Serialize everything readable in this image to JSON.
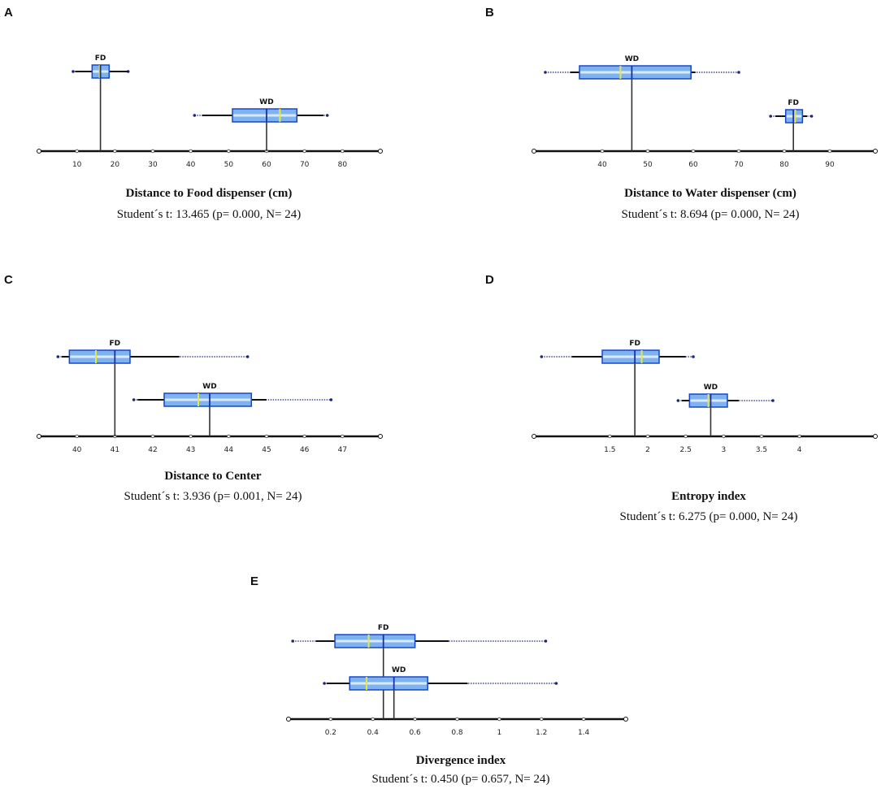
{
  "figure": {
    "colors": {
      "box_fill": "#7fb3f0",
      "box_stroke": "#1846c8",
      "box_inner": "#d9eaff",
      "median": "#1a2fa8",
      "mean": "#e6ea3a",
      "whisker": "#1a237e",
      "axis": "#111111"
    }
  },
  "chart_data": [
    {
      "panel": "A",
      "type": "box",
      "title": "Distance to Food dispenser (cm)",
      "stat": "Student´s t: 13.465 (p= 0.000, N= 24)",
      "xlim": [
        0,
        90
      ],
      "ticks": [
        10,
        20,
        30,
        40,
        50,
        60,
        70,
        80
      ],
      "tick_labels": [
        "10",
        "20",
        "30",
        "40",
        "50",
        "60",
        "70",
        "80"
      ],
      "series": [
        {
          "name": "FD",
          "whisker_low": 9.5,
          "whisker_high": 23.5,
          "outer_low": 9,
          "outer_high": 23.5,
          "q1": 14,
          "q3": 18.5,
          "median": 16.2,
          "mean": 16.0,
          "row": 0
        },
        {
          "name": "WD",
          "whisker_low": 43,
          "whisker_high": 75,
          "outer_low": 41,
          "outer_high": 76,
          "q1": 51,
          "q3": 68,
          "median": 60,
          "mean": 63.5,
          "row": 1
        }
      ],
      "drop_lines": [
        16.2,
        60
      ]
    },
    {
      "panel": "B",
      "type": "box",
      "title": "Distance to Water dispenser (cm)",
      "stat": "Student´s t: 8.694 (p= 0.000, N= 24)",
      "xlim": [
        25,
        100
      ],
      "ticks": [
        40,
        50,
        60,
        70,
        80,
        90
      ],
      "tick_labels": [
        "40",
        "50",
        "60",
        "70",
        "80",
        "90"
      ],
      "series": [
        {
          "name": "WD",
          "whisker_low": 33,
          "whisker_high": 60.5,
          "outer_low": 27.5,
          "outer_high": 70,
          "q1": 35,
          "q3": 59.5,
          "median": 46.5,
          "mean": 44,
          "row": 0
        },
        {
          "name": "FD",
          "whisker_low": 78,
          "whisker_high": 85,
          "outer_low": 77,
          "outer_high": 86,
          "q1": 80.3,
          "q3": 84,
          "median": 82,
          "mean": 82.4,
          "row": 1
        }
      ],
      "drop_lines": [
        46.5,
        82
      ]
    },
    {
      "panel": "C",
      "type": "box",
      "title": "Distance to Center",
      "stat": "Student´s t: 3.936 (p= 0.001, N= 24)",
      "xlim": [
        39,
        48
      ],
      "ticks": [
        40,
        41,
        42,
        43,
        44,
        45,
        46,
        47
      ],
      "tick_labels": [
        "40",
        "41",
        "42",
        "43",
        "44",
        "45",
        "46",
        "47"
      ],
      "series": [
        {
          "name": "FD",
          "whisker_low": 39.6,
          "whisker_high": 42.7,
          "outer_low": 39.5,
          "outer_high": 44.5,
          "q1": 39.8,
          "q3": 41.4,
          "median": 41.0,
          "mean": 40.5,
          "row": 0
        },
        {
          "name": "WD",
          "whisker_low": 41.6,
          "whisker_high": 45.0,
          "outer_low": 41.5,
          "outer_high": 46.7,
          "q1": 42.3,
          "q3": 44.6,
          "median": 43.5,
          "mean": 43.2,
          "row": 1
        }
      ],
      "drop_lines": [
        41.0,
        43.5
      ]
    },
    {
      "panel": "D",
      "type": "box",
      "title": "Entropy  index",
      "stat": "Student´s t: 6.275 (p= 0.000, N= 24)",
      "xlim": [
        0.5,
        5.0
      ],
      "ticks": [
        1.5,
        2,
        2.5,
        3,
        3.5,
        4
      ],
      "tick_labels": [
        "1.5",
        "2",
        "2.5",
        "3",
        "3.5",
        "4"
      ],
      "series": [
        {
          "name": "FD",
          "whisker_low": 1.0,
          "whisker_high": 2.5,
          "outer_low": 0.6,
          "outer_high": 2.6,
          "q1": 1.4,
          "q3": 2.15,
          "median": 1.83,
          "mean": 1.92,
          "row": 0
        },
        {
          "name": "WD",
          "whisker_low": 2.45,
          "whisker_high": 3.2,
          "outer_low": 2.4,
          "outer_high": 3.65,
          "q1": 2.55,
          "q3": 3.05,
          "median": 2.83,
          "mean": 2.8,
          "row": 1
        }
      ],
      "drop_lines": [
        1.83,
        2.83
      ]
    },
    {
      "panel": "E",
      "type": "box",
      "title": "Divergence index",
      "stat": "Student´s t: 0.450 (p= 0.657, N= 24)",
      "xlim": [
        0,
        1.6
      ],
      "ticks": [
        0.2,
        0.4,
        0.6,
        0.8,
        1,
        1.2,
        1.4
      ],
      "tick_labels": [
        "0.2",
        "0.4",
        "0.6",
        "0.8",
        "1",
        "1.2",
        "1.4"
      ],
      "series": [
        {
          "name": "FD",
          "whisker_low": 0.13,
          "whisker_high": 0.76,
          "outer_low": 0.02,
          "outer_high": 1.22,
          "q1": 0.22,
          "q3": 0.6,
          "median": 0.45,
          "mean": 0.38,
          "row": 0
        },
        {
          "name": "WD",
          "whisker_low": 0.18,
          "whisker_high": 0.85,
          "outer_low": 0.17,
          "outer_high": 1.27,
          "q1": 0.29,
          "q3": 0.66,
          "median": 0.5,
          "mean": 0.37,
          "row": 1
        }
      ],
      "drop_lines": [
        0.45,
        0.5
      ]
    }
  ]
}
